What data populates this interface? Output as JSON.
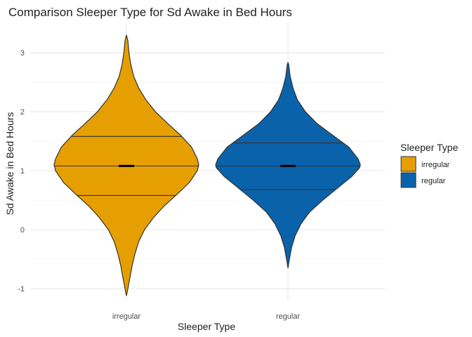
{
  "chart_data": {
    "type": "violin",
    "title": "Comparison Sleeper Type for Sd Awake in Bed Hours",
    "xlabel": "Sleeper Type",
    "ylabel": "Sd Awake in Bed Hours",
    "ylim": [
      -1.2,
      3.5
    ],
    "yticks": [
      -1,
      0,
      1,
      2,
      3
    ],
    "categories": [
      "irregular",
      "regular"
    ],
    "grid": true,
    "legend": {
      "title": "Sleeper Type",
      "position": "right",
      "entries": [
        "irregular",
        "regular"
      ]
    },
    "series": [
      {
        "name": "irregular",
        "color": "#E69F00",
        "min": -1.12,
        "max": 3.3,
        "quantiles": [
          0.58,
          1.08,
          1.58
        ],
        "mean": 1.08,
        "density": [
          [
            -1.12,
            0.0
          ],
          [
            -1.0,
            0.02
          ],
          [
            -0.8,
            0.05
          ],
          [
            -0.6,
            0.08
          ],
          [
            -0.4,
            0.12
          ],
          [
            -0.2,
            0.17
          ],
          [
            0.0,
            0.25
          ],
          [
            0.2,
            0.37
          ],
          [
            0.4,
            0.52
          ],
          [
            0.6,
            0.7
          ],
          [
            0.8,
            0.87
          ],
          [
            1.0,
            0.98
          ],
          [
            1.1,
            1.0
          ],
          [
            1.2,
            0.98
          ],
          [
            1.4,
            0.9
          ],
          [
            1.6,
            0.75
          ],
          [
            1.8,
            0.57
          ],
          [
            2.0,
            0.4
          ],
          [
            2.2,
            0.27
          ],
          [
            2.4,
            0.17
          ],
          [
            2.6,
            0.1
          ],
          [
            2.8,
            0.06
          ],
          [
            3.0,
            0.035
          ],
          [
            3.2,
            0.02
          ],
          [
            3.3,
            0.0
          ]
        ]
      },
      {
        "name": "regular",
        "color": "#0A62AB",
        "min": -0.65,
        "max": 2.83,
        "quantiles": [
          0.68,
          1.08,
          1.47
        ],
        "mean": 1.08,
        "density": [
          [
            -0.65,
            0.0
          ],
          [
            -0.5,
            0.02
          ],
          [
            -0.3,
            0.05
          ],
          [
            -0.1,
            0.1
          ],
          [
            0.1,
            0.18
          ],
          [
            0.3,
            0.3
          ],
          [
            0.5,
            0.48
          ],
          [
            0.7,
            0.68
          ],
          [
            0.9,
            0.88
          ],
          [
            1.05,
            0.99
          ],
          [
            1.1,
            1.0
          ],
          [
            1.2,
            0.97
          ],
          [
            1.4,
            0.84
          ],
          [
            1.6,
            0.62
          ],
          [
            1.8,
            0.4
          ],
          [
            2.0,
            0.24
          ],
          [
            2.2,
            0.13
          ],
          [
            2.4,
            0.07
          ],
          [
            2.6,
            0.03
          ],
          [
            2.8,
            0.01
          ],
          [
            2.83,
            0.0
          ]
        ]
      }
    ]
  }
}
